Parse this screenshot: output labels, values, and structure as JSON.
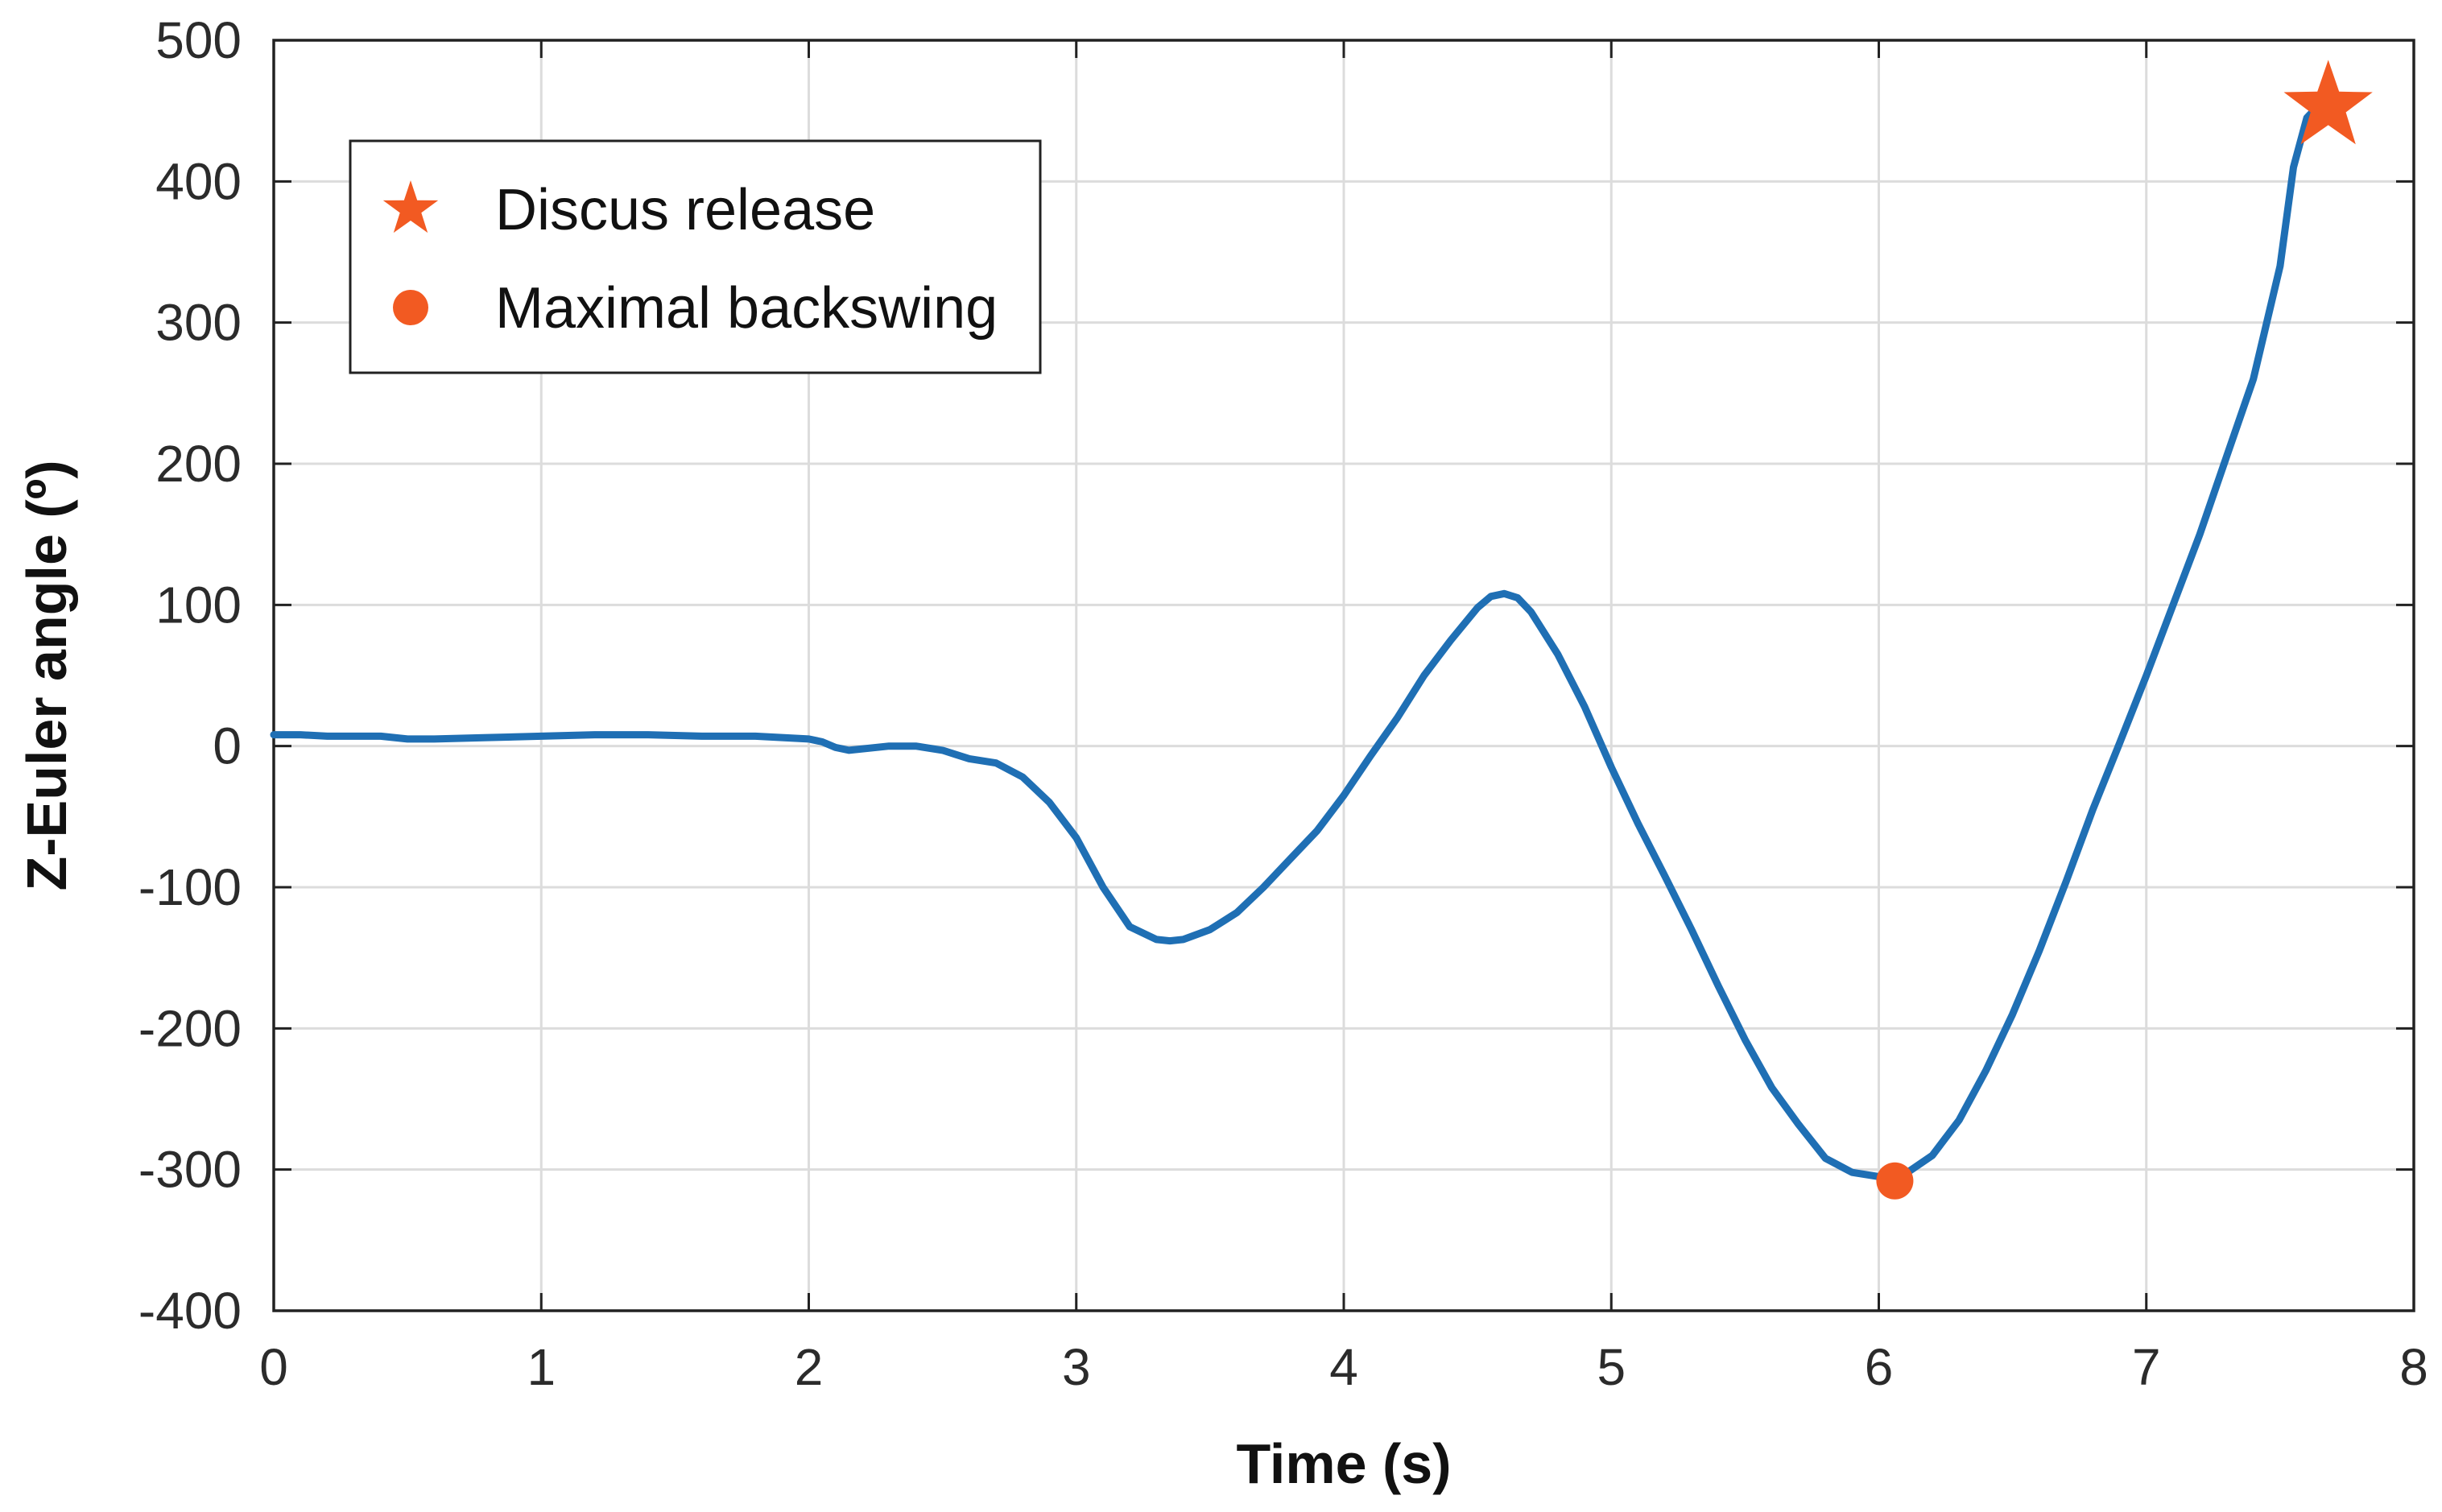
{
  "chart_data": {
    "type": "line",
    "title": "",
    "xlabel": "Time (s)",
    "ylabel": "Z-Euler angle (º)",
    "xlim": [
      0,
      8
    ],
    "ylim": [
      -400,
      500
    ],
    "xticks": [
      "0",
      "1",
      "2",
      "3",
      "4",
      "5",
      "6",
      "7",
      "8"
    ],
    "yticks": [
      "500",
      "400",
      "300",
      "200",
      "100",
      "0",
      "-100",
      "-200",
      "-300",
      "-400"
    ],
    "grid": true,
    "legend_position": "top-left",
    "series": [
      {
        "color": "#1f6fb4",
        "x": [
          0.0,
          0.1,
          0.2,
          0.3,
          0.4,
          0.5,
          0.6,
          0.8,
          1.0,
          1.2,
          1.4,
          1.6,
          1.8,
          1.9,
          2.0,
          2.05,
          2.1,
          2.15,
          2.2,
          2.3,
          2.4,
          2.5,
          2.55,
          2.6,
          2.7,
          2.8,
          2.9,
          3.0,
          3.1,
          3.2,
          3.3,
          3.35,
          3.4,
          3.5,
          3.6,
          3.7,
          3.8,
          3.9,
          4.0,
          4.1,
          4.2,
          4.3,
          4.4,
          4.5,
          4.55,
          4.6,
          4.65,
          4.7,
          4.8,
          4.9,
          5.0,
          5.1,
          5.2,
          5.3,
          5.4,
          5.5,
          5.6,
          5.7,
          5.8,
          5.9,
          6.0,
          6.05,
          6.1,
          6.2,
          6.3,
          6.4,
          6.5,
          6.6,
          6.7,
          6.8,
          6.9,
          7.0,
          7.1,
          7.2,
          7.3,
          7.4,
          7.5,
          7.55,
          7.6,
          7.65,
          7.7
        ],
        "y": [
          8,
          8,
          7,
          7,
          7,
          5,
          5,
          6,
          7,
          8,
          8,
          7,
          7,
          6,
          5,
          3,
          -1,
          -3,
          -2,
          0,
          0,
          -3,
          -6,
          -9,
          -12,
          -22,
          -40,
          -65,
          -100,
          -128,
          -137,
          -138,
          -137,
          -130,
          -118,
          -100,
          -80,
          -60,
          -35,
          -7,
          20,
          50,
          75,
          98,
          106,
          108,
          105,
          95,
          65,
          28,
          -15,
          -55,
          -92,
          -130,
          -170,
          -208,
          -242,
          -268,
          -292,
          -302,
          -305,
          -305,
          -303,
          -290,
          -265,
          -230,
          -190,
          -145,
          -96,
          -45,
          2,
          50,
          100,
          150,
          205,
          260,
          340,
          410,
          445,
          455,
          455
        ]
      }
    ],
    "markers": [
      {
        "label": "Discus release",
        "shape": "star",
        "color": "#f25a22",
        "x": 7.68,
        "y": 453
      },
      {
        "label": "Maximal backswing",
        "shape": "circle",
        "color": "#f25a22",
        "x": 6.06,
        "y": -308
      }
    ]
  }
}
